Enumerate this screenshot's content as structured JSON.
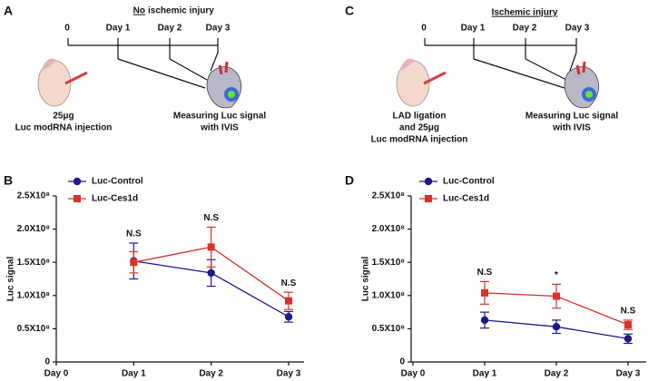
{
  "panels": {
    "A": {
      "letter": "A",
      "title_underlined": "No",
      "title_rest": "ischemic injury",
      "timeline": [
        "0",
        "Day 1",
        "Day 2",
        "Day 3"
      ],
      "left_text": [
        "25μg",
        "Luc modRNA injection"
      ],
      "right_text": [
        "Measuring Luc signal",
        "with IVIS"
      ]
    },
    "C": {
      "letter": "C",
      "title_underlined": "Ischemic injury",
      "timeline": [
        "0",
        "Day 1",
        "Day 2",
        "Day 3"
      ],
      "left_text": [
        "LAD ligation",
        "and 25μg",
        "Luc modRNA injection"
      ],
      "right_text": [
        "Measuring Luc signal",
        "with IVIS"
      ]
    },
    "B": {
      "letter": "B"
    },
    "D": {
      "letter": "D"
    }
  },
  "chart_data": [
    {
      "type": "line",
      "ylabel": "Luc signal",
      "categories": [
        "Day 0",
        "Day 1",
        "Day 2",
        "Day 3"
      ],
      "series": [
        {
          "name": "Luc-Control",
          "color": "#1c1a8a",
          "marker": "circle",
          "values": [
            null,
            152000000,
            134000000,
            68000000
          ],
          "errors": [
            null,
            27000000,
            20000000,
            8000000
          ]
        },
        {
          "name": "Luc-Ces1d",
          "color": "#d8322a",
          "marker": "square",
          "values": [
            null,
            150000000,
            173000000,
            92000000
          ],
          "errors": [
            null,
            16000000,
            30000000,
            13000000
          ]
        }
      ],
      "annotations": [
        null,
        "N.S",
        "N.S",
        "N.S"
      ],
      "ylim": [
        0,
        250000000
      ],
      "yticks": [
        0,
        {
          "value": 50000000,
          "label": "0.5X10⁸"
        },
        {
          "value": 100000000,
          "label": "1.0X10⁸"
        },
        {
          "value": 150000000,
          "label": "1.5X10⁸"
        },
        {
          "value": 200000000,
          "label": "2.0X10⁸"
        },
        {
          "value": 250000000,
          "label": "2.5X10⁸"
        }
      ]
    },
    {
      "type": "line",
      "ylabel": "Luc signal",
      "categories": [
        "Day 0",
        "Day 1",
        "Day 2",
        "Day 3"
      ],
      "series": [
        {
          "name": "Luc-Control",
          "color": "#1c1a8a",
          "marker": "circle",
          "values": [
            null,
            63000000,
            53000000,
            35000000
          ],
          "errors": [
            null,
            12000000,
            10000000,
            7000000
          ]
        },
        {
          "name": "Luc-Ces1d",
          "color": "#d8322a",
          "marker": "square",
          "values": [
            null,
            104000000,
            99000000,
            56000000
          ],
          "errors": [
            null,
            17000000,
            18000000,
            7000000
          ]
        }
      ],
      "annotations": [
        null,
        "N.S",
        "*",
        "N.S"
      ],
      "ylim": [
        0,
        250000000
      ],
      "yticks": [
        0,
        {
          "value": 50000000,
          "label": "0.5X10⁸"
        },
        {
          "value": 100000000,
          "label": "1.0X10⁸"
        },
        {
          "value": 150000000,
          "label": "1.5X10⁸"
        },
        {
          "value": 200000000,
          "label": "2.0X10⁸"
        },
        {
          "value": 250000000,
          "label": "2.5X10⁸"
        }
      ]
    }
  ]
}
